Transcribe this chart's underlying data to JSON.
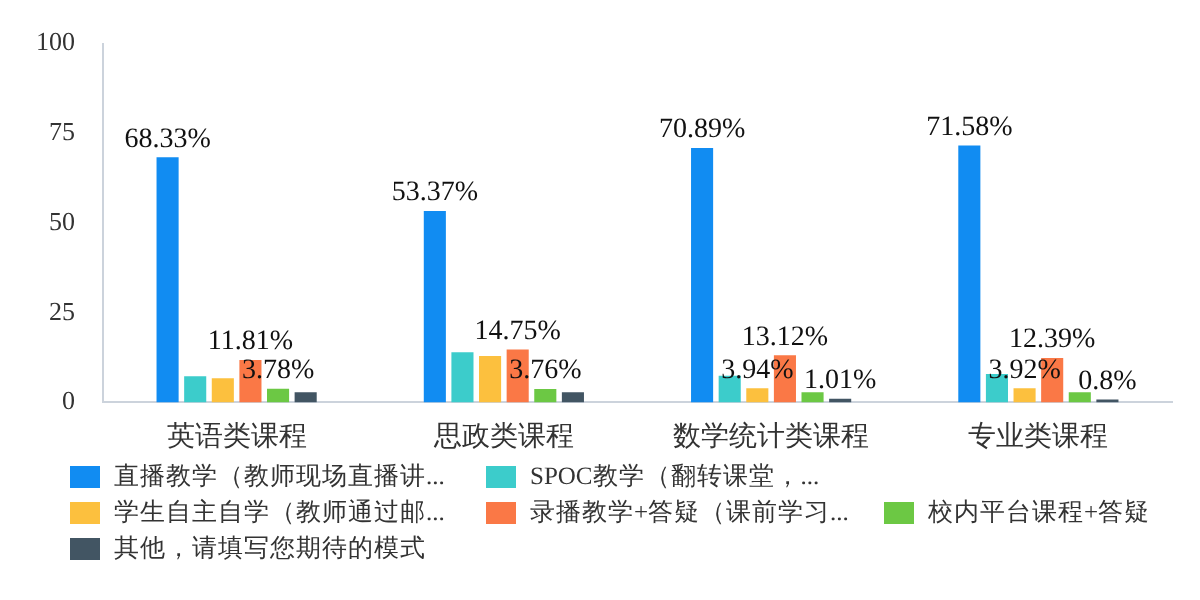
{
  "chart_data": {
    "type": "bar",
    "categories": [
      "英语类课程",
      "思政类课程",
      "数学统计类课程",
      "专业类课程"
    ],
    "series": [
      {
        "name": "直播教学（教师现场直播讲...",
        "color": "#118cf2",
        "values": [
          68.33,
          53.37,
          70.89,
          71.58
        ],
        "value_labels": [
          "68.33%",
          "53.37%",
          "70.89%",
          "71.58%"
        ]
      },
      {
        "name": "SPOC教学（翻转课堂，...",
        "color": "#3ccccb",
        "values": [
          7.3,
          14,
          7.4,
          7.9
        ]
      },
      {
        "name": "学生自主自学（教师通过邮...",
        "color": "#fcc03e",
        "values": [
          6.7,
          12.9,
          3.94,
          3.92
        ],
        "value_labels": [
          null,
          null,
          "3.94%",
          "3.92%"
        ]
      },
      {
        "name": "录播教学+答疑（课前学习...",
        "color": "#fa7846",
        "values": [
          11.81,
          14.75,
          13.12,
          12.39
        ],
        "value_labels": [
          "11.81%",
          "14.75%",
          "13.12%",
          "12.39%"
        ]
      },
      {
        "name": "校内平台课程+答疑",
        "color": "#6cc844",
        "values": [
          3.78,
          3.76,
          2.8,
          2.8
        ],
        "value_labels": [
          "3.78%",
          "3.76%",
          null,
          null
        ]
      },
      {
        "name": "其他，请填写您期待的模式",
        "color": "#425563",
        "values": [
          2.8,
          2.8,
          1.01,
          0.8
        ],
        "value_labels": [
          null,
          null,
          "1.01%",
          "0.8%"
        ]
      }
    ],
    "ylim": [
      0,
      100
    ],
    "yticks": [
      0,
      25,
      50,
      75,
      100
    ],
    "grid": false,
    "legend": "bottom"
  }
}
